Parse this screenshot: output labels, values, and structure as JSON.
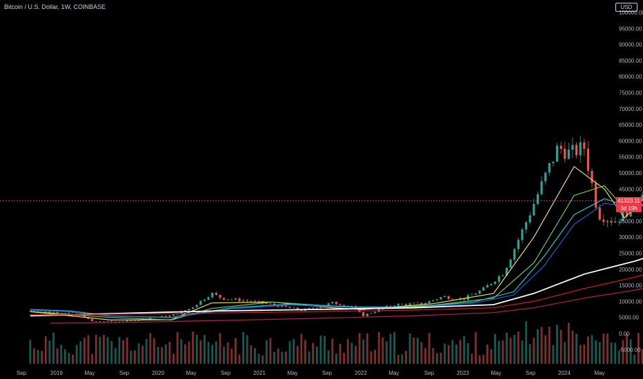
{
  "header": {
    "symbol_title": "Bitcoin / U.S. Dollar, 1W, COINBASE",
    "currency_label": "USD"
  },
  "price_tag": {
    "price": "41323.11",
    "countdown": "3d 19h"
  },
  "colors": {
    "background": "#000000",
    "up_candle": "#26a69a",
    "down_candle": "#ef5350",
    "price_line": "#f23645",
    "ma_fast": "#f5e05a",
    "ma_mid": "#7ccd46",
    "ma_cyan": "#26c6da",
    "ma_blue": "#1e5fd8",
    "ma_white": "#ffffff",
    "ma_red": "#e8151a",
    "ma_magenta": "#c2185b"
  },
  "chart_data": {
    "type": "candlestick",
    "title": "Bitcoin / U.S. Dollar, 1W, COINBASE",
    "y_axis": {
      "ticks": [
        "100000.00",
        "95000.00",
        "90000.00",
        "85000.00",
        "80000.00",
        "75000.00",
        "70000.00",
        "65000.00",
        "60000.00",
        "55000.00",
        "50000.00",
        "45000.00",
        "35000.00",
        "30000.00",
        "25000.00",
        "20000.00",
        "15000.00",
        "10000.00",
        "5000.00",
        "0.00",
        "-5000.00"
      ],
      "ylim": [
        -7500,
        101000
      ],
      "scale": "linear"
    },
    "x_axis": {
      "ticks": [
        "Sep",
        "2019",
        "May",
        "Sep",
        "2020",
        "May",
        "Sep",
        "2021",
        "May",
        "Sep",
        "2022",
        "May",
        "Sep",
        "2023",
        "May",
        "Sep",
        "2024",
        "May"
      ]
    },
    "price_series": {
      "x": [
        2018.6,
        2018.75,
        2018.85,
        2018.9,
        2019.0,
        2019.1,
        2019.2,
        2019.3,
        2019.4,
        2019.5,
        2019.55,
        2019.7,
        2019.8,
        2019.95,
        2020.1,
        2020.2,
        2020.25,
        2020.4,
        2020.55,
        2020.65,
        2020.75,
        2020.85,
        2020.95,
        2021.05,
        2021.15,
        2021.22,
        2021.28,
        2021.35,
        2021.42,
        2021.5,
        2021.58,
        2021.66,
        2021.74,
        2021.78,
        2021.84,
        2021.88,
        2021.94,
        2022.0,
        2022.06,
        2022.12,
        2022.18,
        2022.24,
        2022.28
      ],
      "close": [
        7000,
        6500,
        6300,
        3800,
        3700,
        3900,
        5000,
        5500,
        8000,
        12500,
        11000,
        10000,
        9000,
        7200,
        9500,
        8500,
        5500,
        9000,
        9300,
        11500,
        10700,
        13800,
        19000,
        33000,
        48000,
        58000,
        56000,
        58000,
        37000,
        35000,
        39000,
        47000,
        48000,
        61000,
        64000,
        58000,
        50000,
        47000,
        42000,
        38000,
        39000,
        46000,
        41323
      ]
    },
    "moving_averages": [
      {
        "color": "ma_fast",
        "x": [
          2018.6,
          2019.0,
          2019.3,
          2019.5,
          2019.8,
          2020.1,
          2020.25,
          2020.6,
          2020.9,
          2021.1,
          2021.3,
          2021.45,
          2021.55,
          2021.68,
          2021.85,
          2021.98,
          2022.1,
          2022.2,
          2022.28
        ],
        "y": [
          6800,
          4200,
          4300,
          9500,
          9800,
          8000,
          7500,
          9300,
          12500,
          30000,
          52000,
          45000,
          36000,
          44000,
          57000,
          52000,
          44000,
          40000,
          42500
        ]
      },
      {
        "color": "ma_mid",
        "x": [
          2018.6,
          2019.0,
          2019.3,
          2019.5,
          2019.8,
          2020.1,
          2020.3,
          2020.6,
          2020.9,
          2021.1,
          2021.3,
          2021.45,
          2021.55,
          2021.7,
          2021.85,
          2021.98,
          2022.1,
          2022.2,
          2022.28
        ],
        "y": [
          6900,
          5000,
          4200,
          7800,
          9800,
          8500,
          7800,
          8800,
          11000,
          22000,
          43000,
          46000,
          39000,
          41000,
          50000,
          50000,
          46000,
          42000,
          42000
        ]
      },
      {
        "color": "ma_cyan",
        "x": [
          2018.6,
          2018.8,
          2019.0,
          2019.3,
          2019.6,
          2019.9,
          2020.2,
          2020.5,
          2020.8,
          2021.0,
          2021.15,
          2021.3,
          2021.45,
          2021.6,
          2021.75,
          2021.9,
          2022.0,
          2022.15,
          2022.28
        ],
        "y": [
          7500,
          7000,
          5500,
          5000,
          8000,
          9200,
          8300,
          8200,
          9800,
          13000,
          24000,
          37000,
          42000,
          39000,
          42000,
          46000,
          47000,
          44000,
          43500
        ]
      },
      {
        "color": "ma_blue",
        "x": [
          2018.6,
          2018.8,
          2019.0,
          2019.3,
          2019.6,
          2019.9,
          2020.2,
          2020.5,
          2020.8,
          2021.0,
          2021.15,
          2021.3,
          2021.45,
          2021.6,
          2021.75,
          2021.9,
          2022.0,
          2022.15,
          2022.28
        ],
        "y": [
          7300,
          6800,
          5400,
          4900,
          7700,
          8900,
          8100,
          8000,
          9400,
          12000,
          21000,
          34000,
          40500,
          39500,
          41000,
          44500,
          45500,
          44500,
          44000
        ]
      },
      {
        "color": "ma_white",
        "x": [
          2018.6,
          2019.0,
          2019.5,
          2020.0,
          2020.5,
          2020.9,
          2021.1,
          2021.35,
          2021.6,
          2021.85,
          2022.05,
          2022.28
        ],
        "y": [
          5500,
          6200,
          7000,
          7500,
          8000,
          9000,
          12500,
          18500,
          22500,
          27500,
          31500,
          35000
        ]
      },
      {
        "color": "ma_red",
        "x": [
          2018.6,
          2019.0,
          2019.5,
          2020.0,
          2020.5,
          2020.9,
          2021.1,
          2021.35,
          2021.6,
          2021.85,
          2022.05,
          2022.28
        ],
        "y": [
          5800,
          6000,
          6400,
          6800,
          7300,
          8000,
          10000,
          14000,
          17500,
          21500,
          24500,
          26500
        ]
      },
      {
        "color": "ma_magenta",
        "x": [
          2018.7,
          2019.0,
          2019.5,
          2020.0,
          2020.5,
          2020.9,
          2021.1,
          2021.35,
          2021.6,
          2021.85,
          2022.05,
          2022.28
        ],
        "y": [
          3200,
          3400,
          4000,
          4700,
          5500,
          6500,
          8000,
          11000,
          13500,
          16500,
          19000,
          21000
        ]
      }
    ]
  }
}
